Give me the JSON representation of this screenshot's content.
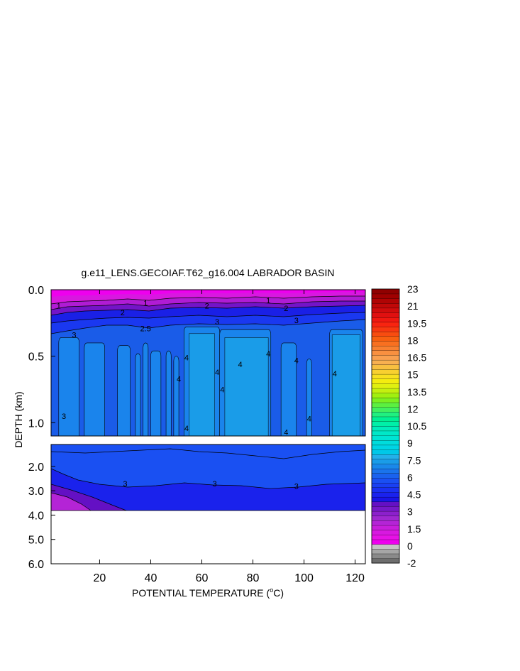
{
  "chart_data": {
    "type": "heatmap",
    "title": "g.e11_LENS.GECOIAF.T62_g16.004 LABRADOR BASIN",
    "xlabel": "POTENTIAL TEMPERATURE (",
    "xlabel_sup": "o",
    "xlabel_end": "C)",
    "ylabel": "DEPTH (km)",
    "x_ticks": [
      "20",
      "40",
      "60",
      "80",
      "100",
      "120"
    ],
    "x_tick_values": [
      20,
      40,
      60,
      80,
      100,
      120
    ],
    "xlim": [
      1,
      124
    ],
    "upper_panel": {
      "ylim": [
        0.0,
        1.1
      ],
      "y_ticks": [
        "0.0",
        "0.5",
        "1.0"
      ],
      "y_tick_values": [
        0.0,
        0.5,
        1.0
      ]
    },
    "lower_panel": {
      "ylim": [
        1.1,
        6.0
      ],
      "y_ticks": [
        "2.0",
        "3.0",
        "4.0",
        "5.0",
        "6.0"
      ],
      "y_tick_values": [
        2.0,
        3.0,
        4.0,
        5.0,
        6.0
      ],
      "data_bottom_depth": 4.0
    },
    "contour_labels": [
      {
        "text": "1",
        "x": 4,
        "y": 0.12
      },
      {
        "text": "1",
        "x": 38,
        "y": 0.1
      },
      {
        "text": "1",
        "x": 86,
        "y": 0.08
      },
      {
        "text": "2",
        "x": 29,
        "y": 0.17
      },
      {
        "text": "2",
        "x": 62,
        "y": 0.12
      },
      {
        "text": "2",
        "x": 93,
        "y": 0.14
      },
      {
        "text": "2.5",
        "x": 38,
        "y": 0.29
      },
      {
        "text": "3",
        "x": 10,
        "y": 0.34
      },
      {
        "text": "3",
        "x": 66,
        "y": 0.24
      },
      {
        "text": "3",
        "x": 97,
        "y": 0.23
      },
      {
        "text": "3",
        "x": 6,
        "y": 0.95
      },
      {
        "text": "4",
        "x": 54,
        "y": 0.51
      },
      {
        "text": "4",
        "x": 51,
        "y": 0.67
      },
      {
        "text": "4",
        "x": 66,
        "y": 0.62
      },
      {
        "text": "4",
        "x": 68,
        "y": 0.75
      },
      {
        "text": "4",
        "x": 75,
        "y": 0.56
      },
      {
        "text": "4",
        "x": 86,
        "y": 0.48
      },
      {
        "text": "4",
        "x": 97,
        "y": 0.53
      },
      {
        "text": "4",
        "x": 102,
        "y": 0.97
      },
      {
        "text": "4",
        "x": 112,
        "y": 0.63
      },
      {
        "text": "4",
        "x": 54,
        "y": 1.04
      },
      {
        "text": "4",
        "x": 93,
        "y": 1.07
      },
      {
        "text": "3",
        "x": 30,
        "y": 2.7
      },
      {
        "text": "3",
        "x": 65,
        "y": 2.7
      },
      {
        "text": "3",
        "x": 97,
        "y": 2.8
      }
    ],
    "colorbar": {
      "labels": [
        "23",
        "21",
        "19.5",
        "18",
        "16.5",
        "15",
        "13.5",
        "12",
        "10.5",
        "9",
        "7.5",
        "6",
        "4.5",
        "3",
        "1.5",
        "0",
        "-2"
      ],
      "colors": [
        "#6e6e6e",
        "#8a8a8a",
        "#a6a6a6",
        "#c4c4c4",
        "#ee00ee",
        "#e612e6",
        "#d818e0",
        "#c81edb",
        "#b424d6",
        "#a028d0",
        "#8c20cc",
        "#7618c8",
        "#6410c4",
        "#1a14e6",
        "#1a22ee",
        "#1a30f2",
        "#1a40f2",
        "#1a50f2",
        "#1a62ee",
        "#1a74ec",
        "#1a88ea",
        "#1a9ce8",
        "#24b0ea",
        "#00c8e8",
        "#00d4e4",
        "#00dcdc",
        "#00e4d4",
        "#00e8c8",
        "#00ecbc",
        "#00f0a8",
        "#00f094",
        "#20f080",
        "#40f060",
        "#5cf040",
        "#7cf020",
        "#a0f010",
        "#c4f010",
        "#e0f010",
        "#f4ec10",
        "#f8e020",
        "#f8d030",
        "#f8c040",
        "#f8b050",
        "#f8a050",
        "#f89040",
        "#f88030",
        "#f87020",
        "#f86010",
        "#f84c10",
        "#f83810",
        "#f82410",
        "#f01810",
        "#e01010",
        "#d00c0c",
        "#c00808",
        "#b00404",
        "#a00000",
        "#900000"
      ]
    }
  }
}
